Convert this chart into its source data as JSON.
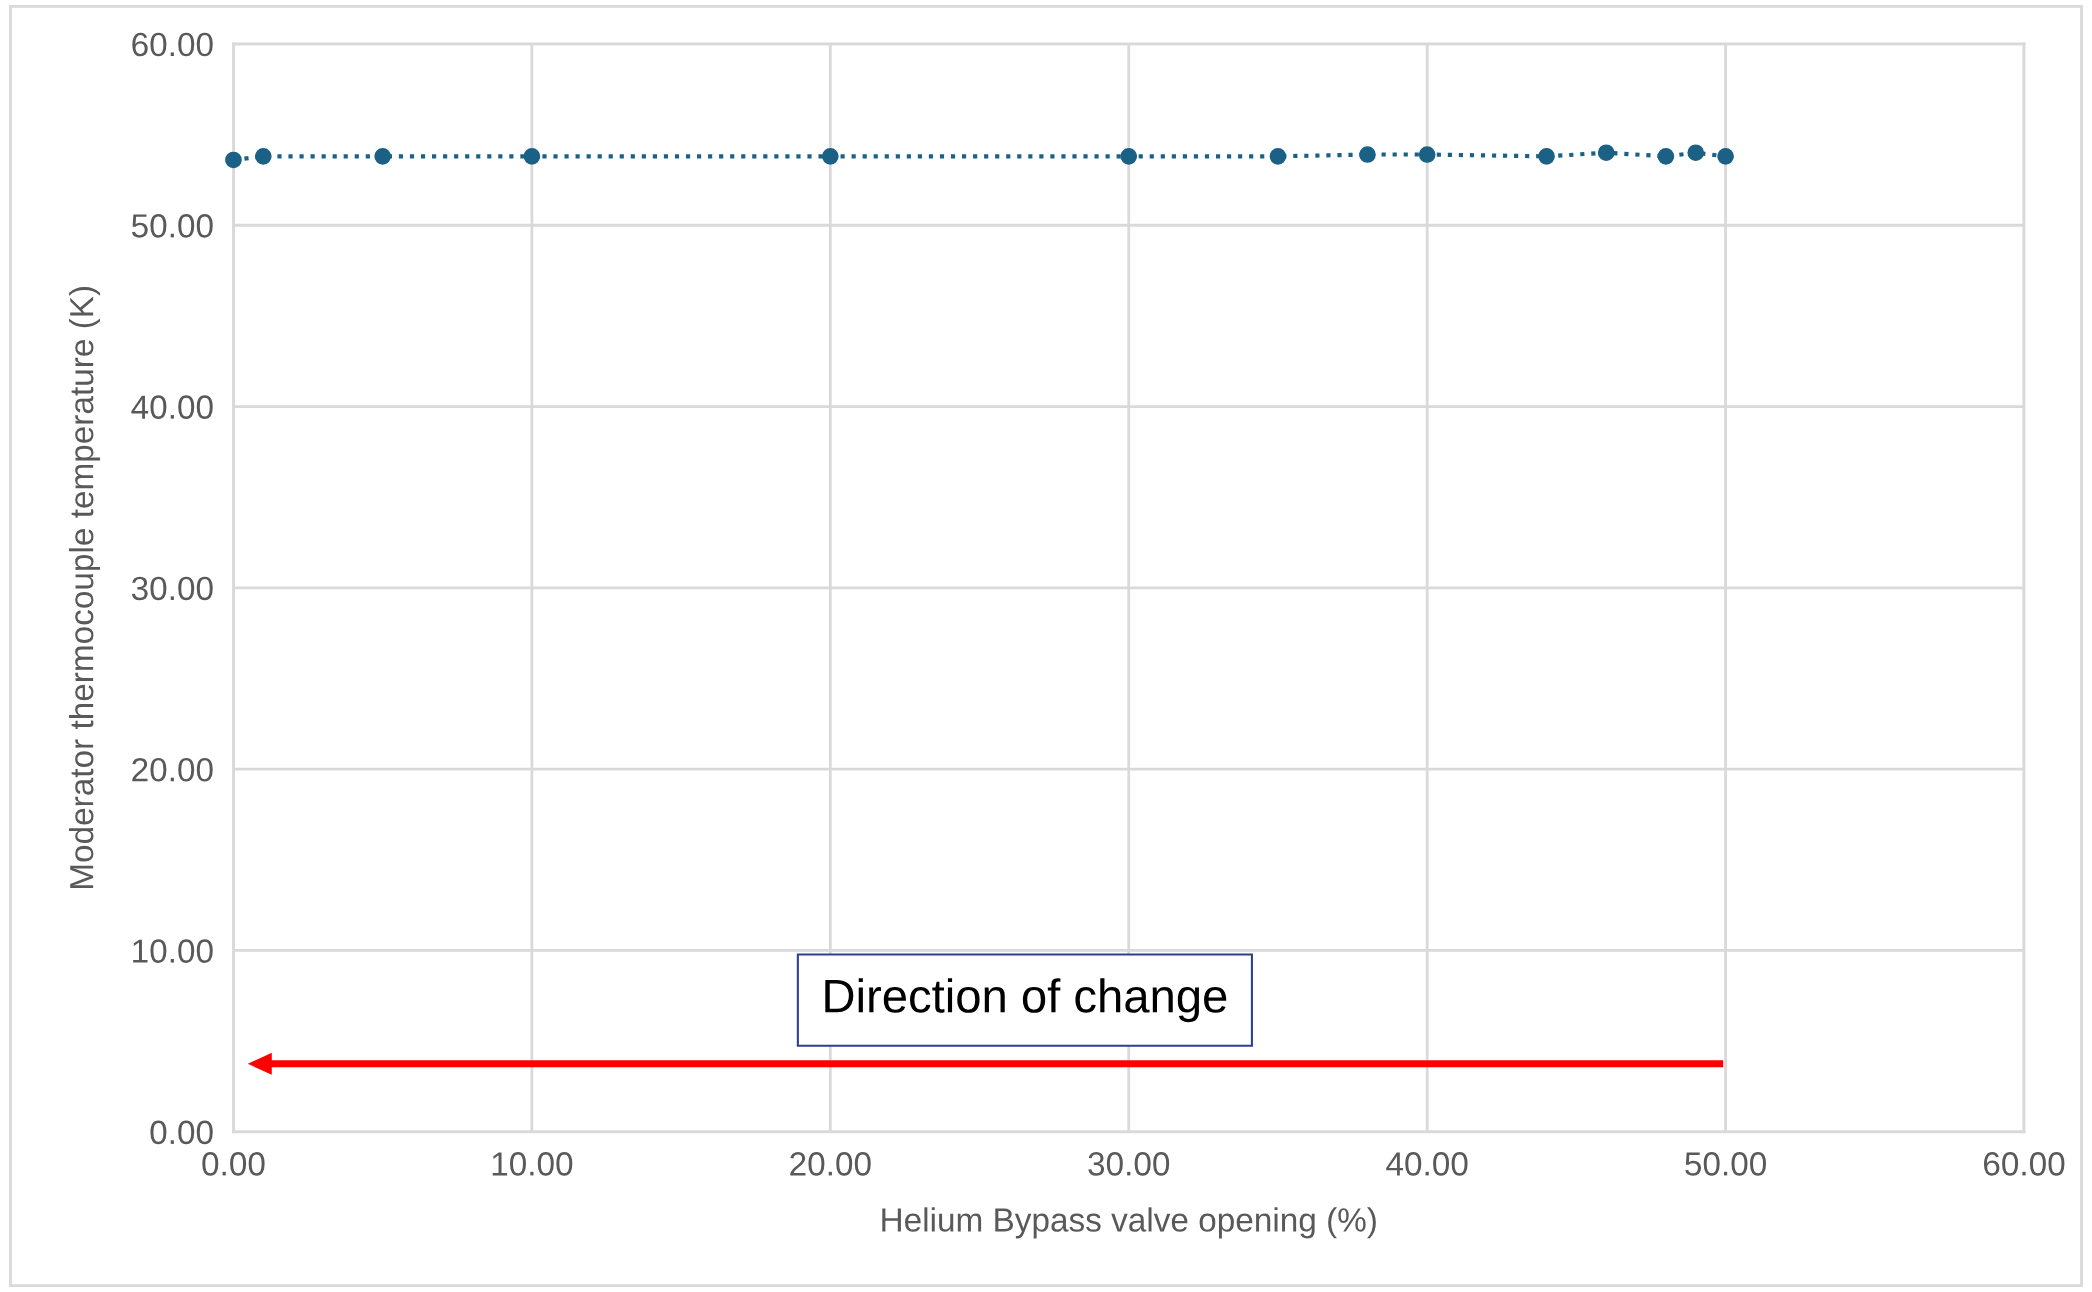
{
  "chart_data": {
    "type": "line",
    "xlabel": "Helium Bypass valve opening (%)",
    "ylabel": "Moderator thermocouple temperature (K)",
    "x": [
      0,
      1,
      5,
      10,
      20,
      30,
      35,
      38,
      40,
      44,
      46,
      48,
      49,
      50
    ],
    "series": [
      {
        "color": "#1b6185",
        "values": [
          53.6,
          53.8,
          53.8,
          53.8,
          53.8,
          53.8,
          53.8,
          53.9,
          53.9,
          53.8,
          54.0,
          53.8,
          54.0,
          53.8
        ]
      }
    ],
    "xlim": [
      0,
      60
    ],
    "ylim": [
      0,
      60
    ],
    "xticks": [
      {
        "value": 0,
        "label": "0.00"
      },
      {
        "value": 10,
        "label": "10.00"
      },
      {
        "value": 20,
        "label": "20.00"
      },
      {
        "value": 30,
        "label": "30.00"
      },
      {
        "value": 40,
        "label": "40.00"
      },
      {
        "value": 50,
        "label": "50.00"
      },
      {
        "value": 60,
        "label": "60.00"
      }
    ],
    "yticks": [
      {
        "value": 0,
        "label": "0.00"
      },
      {
        "value": 10,
        "label": "10.00"
      },
      {
        "value": 20,
        "label": "20.00"
      },
      {
        "value": 30,
        "label": "30.00"
      },
      {
        "value": 40,
        "label": "40.00"
      },
      {
        "value": 50,
        "label": "50.00"
      },
      {
        "value": 60,
        "label": "60.00"
      }
    ],
    "grid": true,
    "marker": "circle",
    "line_style": "dotted",
    "annotations": [
      "Direction of change"
    ]
  }
}
